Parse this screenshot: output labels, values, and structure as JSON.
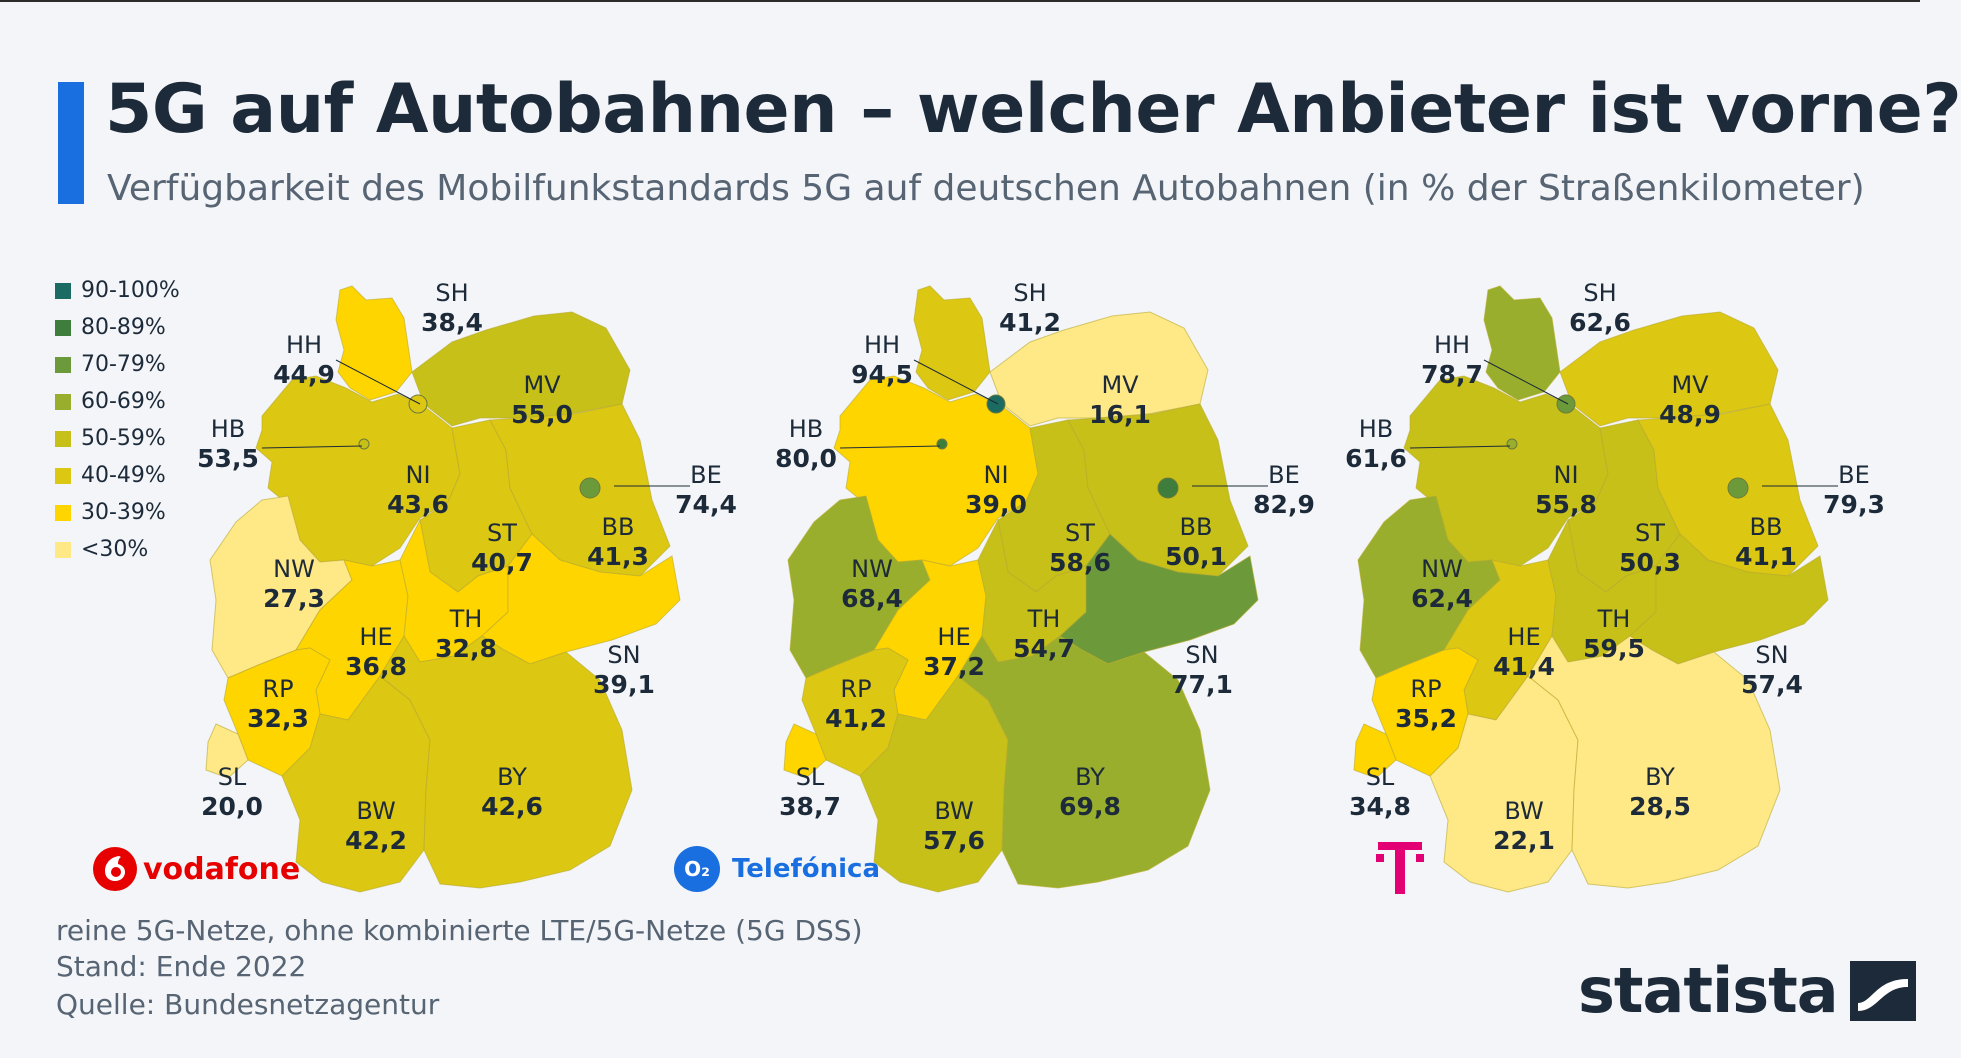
{
  "title": "5G auf Autobahnen – welcher Anbieter ist vorne?",
  "subtitle": "Verfügbarkeit des Mobilfunkstandards 5G auf deutschen Autobahnen (in % der Straßenkilometer)",
  "legend": [
    {
      "label": "90-100%",
      "color": "#1b6b62"
    },
    {
      "label": "80-89%",
      "color": "#3f7d3c"
    },
    {
      "label": "70-79%",
      "color": "#6c9a3a"
    },
    {
      "label": "60-69%",
      "color": "#98ae2c"
    },
    {
      "label": "50-59%",
      "color": "#c6c018"
    },
    {
      "label": "40-49%",
      "color": "#dcc712"
    },
    {
      "label": "30-39%",
      "color": "#ffd500"
    },
    {
      "label": "<30%",
      "color": "#ffe886"
    }
  ],
  "logos": {
    "vodafone": "vodafone",
    "telefonica": "Telefónica",
    "telefonica_badge": "O₂",
    "telekom": "T"
  },
  "footnotes": [
    "reine 5G-Netze, ohne kombinierte LTE/5G-Netze (5G DSS)",
    "Stand: Ende 2022",
    "Quelle: Bundesnetzagentur"
  ],
  "brand": "statista",
  "chart_data": [
    {
      "type": "choropleth",
      "operator": "Vodafone",
      "regions": {
        "SH": "38,4",
        "HH": "44,9",
        "MV": "55,0",
        "HB": "53,5",
        "NI": "43,6",
        "BE": "74,4",
        "ST": "40,7",
        "BB": "41,3",
        "NW": "27,3",
        "HE": "36,8",
        "TH": "32,8",
        "SN": "39,1",
        "RP": "32,3",
        "SL": "20,0",
        "BW": "42,2",
        "BY": "42,6"
      }
    },
    {
      "type": "choropleth",
      "operator": "Telefónica",
      "regions": {
        "SH": "41,2",
        "HH": "94,5",
        "MV": "16,1",
        "HB": "80,0",
        "NI": "39,0",
        "BE": "82,9",
        "ST": "58,6",
        "BB": "50,1",
        "NW": "68,4",
        "HE": "37,2",
        "TH": "54,7",
        "SN": "77,1",
        "RP": "41,2",
        "SL": "38,7",
        "BW": "57,6",
        "BY": "69,8"
      }
    },
    {
      "type": "choropleth",
      "operator": "Telekom",
      "regions": {
        "SH": "62,6",
        "HH": "78,7",
        "MV": "48,9",
        "HB": "61,6",
        "NI": "55,8",
        "BE": "79,3",
        "ST": "50,3",
        "BB": "41,1",
        "NW": "62,4",
        "HE": "41,4",
        "TH": "59,5",
        "SN": "57,4",
        "RP": "35,2",
        "SL": "34,8",
        "BW": "22,1",
        "BY": "28,5"
      }
    }
  ]
}
